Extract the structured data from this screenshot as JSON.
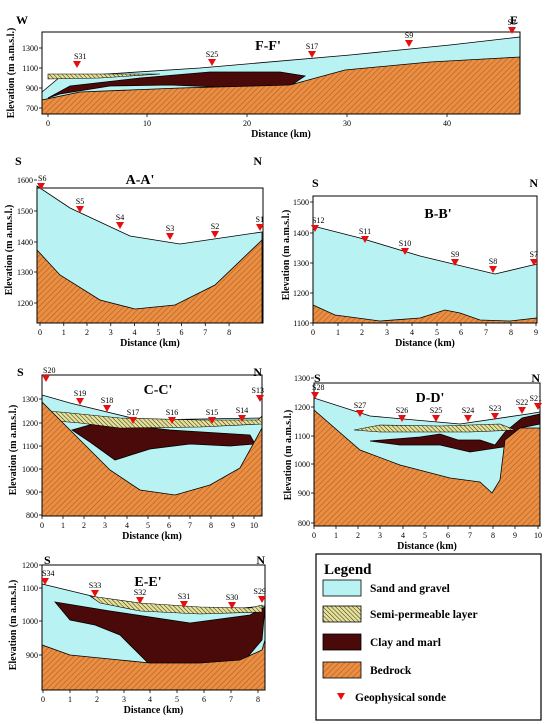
{
  "colors": {
    "sand": "#b9f2f3",
    "clay": "#4a0a0a",
    "bedrock": "#e88f45",
    "bedrock_hatch": "#b85a18",
    "semi": "#e6e19a",
    "semi_hatch": "#2b2b10",
    "sonde": "#e60f0f"
  },
  "pattern_descriptions": {
    "semi": "yellow-green with dark diagonal hatching",
    "bedrock": "orange with diagonal hatching"
  },
  "common_labels": {
    "ylabel": "Elevation (m a.m.s.l.)",
    "xlabel": "Distance (km)"
  },
  "panels": [
    {
      "id": "F",
      "title": "F-F'",
      "left_end": "W",
      "right_end": "E",
      "x_ticks": [
        "0",
        "10",
        "20",
        "30",
        "40"
      ],
      "y_ticks": [
        "700",
        "900",
        "1100",
        "1300"
      ],
      "sondes": [
        "S31",
        "S25",
        "S17",
        "S9",
        "S3"
      ]
    },
    {
      "id": "A",
      "title": "A-A'",
      "left_end": "S",
      "right_end": "N",
      "x_ticks": [
        "0",
        "1",
        "2",
        "3",
        "4",
        "5",
        "6",
        "7",
        "8"
      ],
      "y_ticks": [
        "1200",
        "1300",
        "1400",
        "1500",
        "1600"
      ],
      "sondes": [
        "S6",
        "S5",
        "S4",
        "S3",
        "S2",
        "S1"
      ]
    },
    {
      "id": "B",
      "title": "B-B'",
      "left_end": "S",
      "right_end": "N",
      "x_ticks": [
        "0",
        "1",
        "2",
        "3",
        "4",
        "5",
        "6",
        "7",
        "8",
        "9"
      ],
      "y_ticks": [
        "1100",
        "1200",
        "1300",
        "1400",
        "1500"
      ],
      "sondes": [
        "S12",
        "S11",
        "S10",
        "S9",
        "S8",
        "S7"
      ]
    },
    {
      "id": "C",
      "title": "C-C'",
      "left_end": "S",
      "right_end": "N",
      "x_ticks": [
        "0",
        "1",
        "2",
        "3",
        "4",
        "5",
        "6",
        "7",
        "8",
        "9",
        "10"
      ],
      "y_ticks": [
        "800",
        "900",
        "1000",
        "1100",
        "1200",
        "1300"
      ],
      "sondes": [
        "S20",
        "S19",
        "S18",
        "S17",
        "S16",
        "S15",
        "S14",
        "S13"
      ]
    },
    {
      "id": "D",
      "title": "D-D'",
      "left_end": "S",
      "right_end": "N",
      "x_ticks": [
        "0",
        "1",
        "2",
        "3",
        "4",
        "5",
        "6",
        "7",
        "8",
        "9",
        "10"
      ],
      "y_ticks": [
        "800",
        "900",
        "1000",
        "1100",
        "1200",
        "1300"
      ],
      "sondes": [
        "S28",
        "S27",
        "S26",
        "S25",
        "S24",
        "S23",
        "S22",
        "S21"
      ]
    },
    {
      "id": "E",
      "title": "E-E'",
      "left_end": "S",
      "right_end": "N",
      "x_ticks": [
        "0",
        "1",
        "2",
        "3",
        "4",
        "5",
        "6",
        "7",
        "8"
      ],
      "y_ticks": [
        "900",
        "1000",
        "1100",
        "1200"
      ],
      "sondes": [
        "S34",
        "S33",
        "S32",
        "S31",
        "S30",
        "S29"
      ]
    }
  ],
  "legend": {
    "title": "Legend",
    "items": [
      {
        "key": "sand",
        "label": "Sand and gravel"
      },
      {
        "key": "semi",
        "label": "Semi-permeable layer"
      },
      {
        "key": "clay",
        "label": "Clay and marl"
      },
      {
        "key": "bedrock",
        "label": "Bedrock"
      },
      {
        "key": "sonde",
        "label": "Geophysical sonde"
      }
    ]
  }
}
